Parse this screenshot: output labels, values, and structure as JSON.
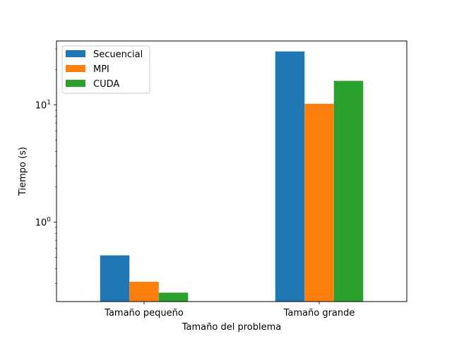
{
  "chart_data": {
    "type": "bar",
    "categories": [
      "Tamaño pequeño",
      "Tamaño grande"
    ],
    "series": [
      {
        "name": "Secuencial",
        "values": [
          0.52,
          28.5
        ],
        "color": "#1f77b4"
      },
      {
        "name": "MPI",
        "values": [
          0.31,
          10.2
        ],
        "color": "#ff7f0e"
      },
      {
        "name": "CUDA",
        "values": [
          0.25,
          16.0
        ],
        "color": "#2ca02c"
      }
    ],
    "xlabel": "Tamaño del problema",
    "ylabel": "Tiempo (s)",
    "yscale": "log",
    "ylim": [
      0.21,
      35
    ],
    "yticks": [
      {
        "value": 1,
        "base": "10",
        "exp": "0"
      },
      {
        "value": 10,
        "base": "10",
        "exp": "1"
      }
    ],
    "legend_position": "top-left",
    "grid": false
  }
}
